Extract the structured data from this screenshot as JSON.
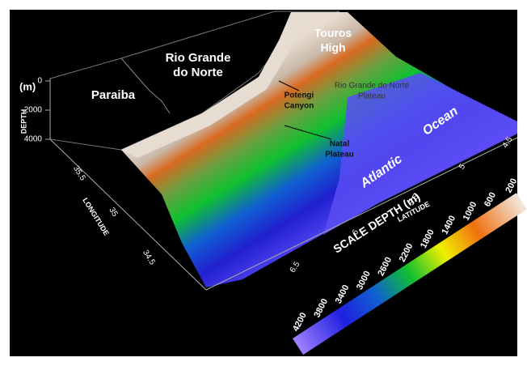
{
  "depth_axis": {
    "unit": "(m)",
    "label": "DEPTH",
    "ticks": [
      0,
      2000,
      4000
    ]
  },
  "longitude_axis": {
    "label": "LONGITUDE",
    "ticks": [
      35.5,
      35,
      34.5
    ]
  },
  "latitude_axis": {
    "label": "LATITUDE",
    "ticks": [
      6.5,
      6,
      5.5,
      5,
      4.5
    ]
  },
  "places": {
    "paraiba": "Paraiba",
    "rio_grande_do_norte": [
      "Rio Grande",
      "do Norte"
    ],
    "touros_high": [
      "Touros",
      "High"
    ],
    "potengi_canyon": [
      "Potengi",
      "Canyon"
    ],
    "natal_plateau": [
      "Natal",
      "Plateau"
    ],
    "rgn_plateau": [
      "Rio Grande do Norte",
      "Plateau"
    ],
    "atlantic": "Atlantic",
    "ocean": "Ocean"
  },
  "colorbar": {
    "title": "SCALE DEPTH (m)",
    "ticks": [
      4200,
      3800,
      3400,
      3000,
      2600,
      2200,
      1800,
      1400,
      1000,
      600,
      200
    ]
  }
}
